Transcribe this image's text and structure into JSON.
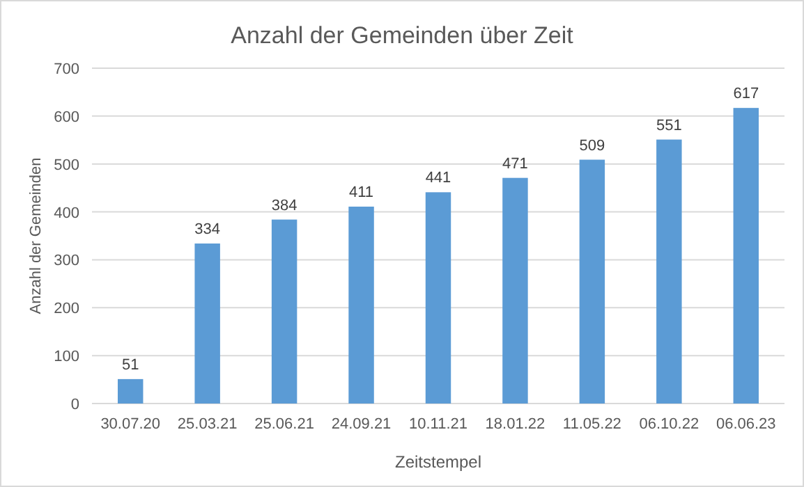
{
  "chart_data": {
    "type": "bar",
    "title": "Anzahl der Gemeinden über Zeit",
    "xlabel": "Zeitstempel",
    "ylabel": "Anzahl der Gemeinden",
    "categories": [
      "30.07.20",
      "25.03.21",
      "25.06.21",
      "24.09.21",
      "10.11.21",
      "18.01.22",
      "11.05.22",
      "06.10.22",
      "06.06.23"
    ],
    "values": [
      51,
      334,
      384,
      411,
      441,
      471,
      509,
      551,
      617
    ],
    "color": "#5b9bd5",
    "ylim": [
      0,
      700
    ],
    "yticks": [
      0,
      100,
      200,
      300,
      400,
      500,
      600,
      700
    ],
    "grid": "y",
    "data_labels": true
  }
}
